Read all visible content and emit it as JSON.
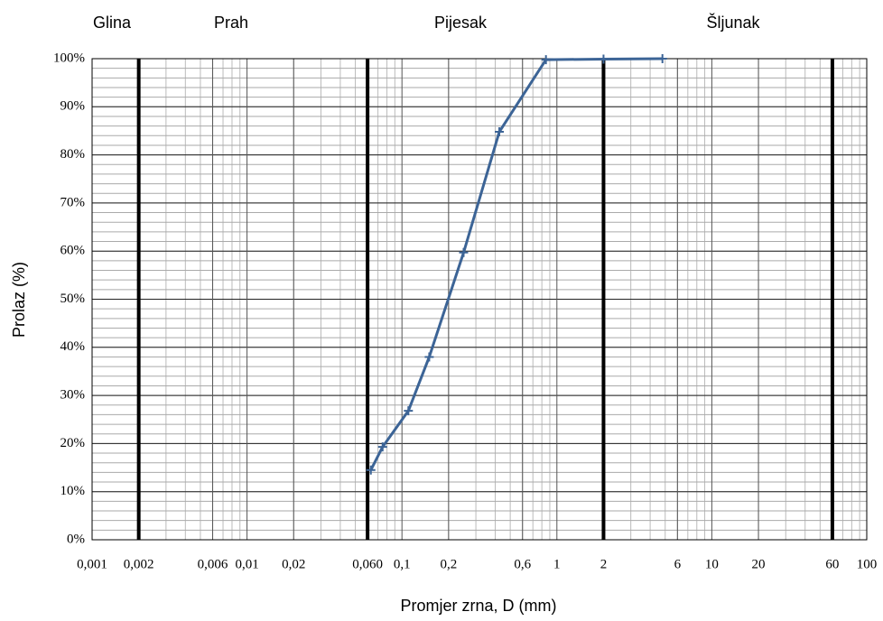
{
  "chart_data": {
    "type": "line",
    "log_x": true,
    "xlabel": "Promjer zrna, D (mm)",
    "ylabel": "Prolaz  (%)",
    "zones": [
      "Glina",
      "Prah",
      "Pijesak",
      "Šljunak"
    ],
    "boundaries": [
      0.002,
      0.06,
      2,
      60
    ],
    "x": [
      0.063,
      0.075,
      0.11,
      0.15,
      0.25,
      0.425,
      0.85,
      2,
      4.8
    ],
    "values": [
      14.5,
      19.3,
      26.8,
      38,
      59.7,
      84.8,
      99.8,
      99.9,
      100
    ],
    "color": "#3c6496",
    "xlim": [
      0.001,
      100
    ],
    "xticks": [
      {
        "value": 0.001,
        "label": "0,001"
      },
      {
        "value": 0.002,
        "label": "0,002"
      },
      {
        "value": 0.006,
        "label": "0,006"
      },
      {
        "value": 0.01,
        "label": "0,01"
      },
      {
        "value": 0.02,
        "label": "0,02"
      },
      {
        "value": 0.06,
        "label": "0,060"
      },
      {
        "value": 0.1,
        "label": "0,1"
      },
      {
        "value": 0.2,
        "label": "0,2"
      },
      {
        "value": 0.6,
        "label": "0,6"
      },
      1,
      2,
      6,
      10,
      20,
      60,
      100
    ],
    "ylim": [
      0,
      100
    ],
    "yticks": [
      {
        "value": 0,
        "label": "0%"
      },
      {
        "value": 10,
        "label": "10%"
      },
      {
        "value": 20,
        "label": "20%"
      },
      {
        "value": 30,
        "label": "30%"
      },
      {
        "value": 40,
        "label": "40%"
      },
      {
        "value": 50,
        "label": "50%"
      },
      {
        "value": 60,
        "label": "60%"
      },
      {
        "value": 70,
        "label": "70%"
      },
      {
        "value": 80,
        "label": "80%"
      },
      {
        "value": 90,
        "label": "90%"
      },
      {
        "value": 100,
        "label": "100%"
      }
    ],
    "grid": true
  }
}
